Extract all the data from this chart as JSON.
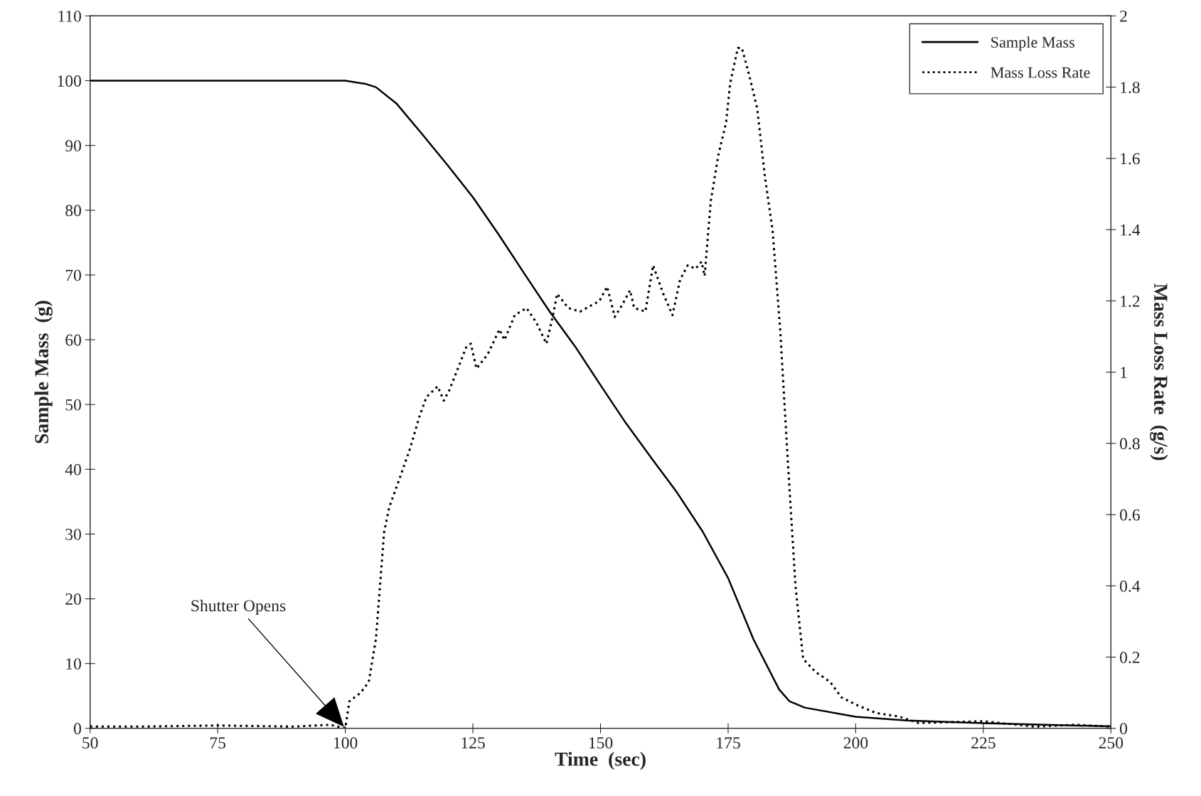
{
  "chart_data": {
    "type": "line",
    "xlabel": "Time  (sec)",
    "ylabel": "Sample Mass  (g)",
    "y2label": "Mass Loss Rate  (g/s)",
    "xlim": [
      50,
      250
    ],
    "xticks": [
      50,
      75,
      100,
      125,
      150,
      175,
      200,
      225,
      250
    ],
    "ylim": [
      0,
      110
    ],
    "yticks": [
      0,
      10,
      20,
      30,
      40,
      50,
      60,
      70,
      80,
      90,
      100,
      110
    ],
    "y2lim": [
      0,
      2
    ],
    "y2ticks": [
      0,
      0.2,
      0.4,
      0.6,
      0.8,
      1,
      1.2,
      1.4,
      1.6,
      1.8,
      2
    ],
    "grid": false,
    "legend": "top right",
    "annotations": [
      {
        "text": "Shutter Opens",
        "x": 100,
        "y": 0
      }
    ],
    "series": [
      {
        "name": "Sample Mass",
        "color": "#000000",
        "line_style": "solid",
        "x": [
          50,
          75,
          100,
          104,
          106,
          110,
          115,
          120,
          125,
          130,
          135,
          140,
          145,
          150,
          155,
          160,
          165,
          170,
          175,
          180,
          185,
          187,
          190,
          200,
          210,
          225,
          250
        ],
        "values": [
          100,
          100,
          100,
          99.5,
          99,
          96.5,
          91.8,
          87,
          82,
          76.3,
          70.3,
          64.4,
          59,
          53,
          47.1,
          41.7,
          36.4,
          30.4,
          23.2,
          13.7,
          6,
          4.2,
          3.2,
          1.8,
          1.2,
          0.8,
          0.3
        ]
      },
      {
        "name": "Mass Loss Rate",
        "color": "#000000",
        "line_style": "dotted",
        "axis": "y2",
        "x": [
          50,
          60,
          75,
          90,
          97,
          100,
          100.8,
          103,
          104.6,
          106,
          106.8,
          107.6,
          108.6,
          110.6,
          112.8,
          114.4,
          115.9,
          118.1,
          119.3,
          120.4,
          122.6,
          123.7,
          124.6,
          125.7,
          127.9,
          130.2,
          131.2,
          133.2,
          135.5,
          137.4,
          139.4,
          140.7,
          141.5,
          143.7,
          146,
          149.8,
          151.3,
          152.8,
          154.3,
          155.8,
          156.6,
          158.8,
          160.3,
          162.3,
          164.1,
          165.6,
          167.1,
          168.6,
          169.8,
          170.4,
          171.6,
          173.1,
          174.6,
          175.4,
          176.9,
          177.7,
          179.2,
          180.7,
          182.2,
          183.7,
          185.2,
          186.7,
          188.2,
          189.7,
          192,
          195,
          197.2,
          200.3,
          204,
          208.5,
          212.3,
          225,
          235,
          243,
          250
        ],
        "values": [
          0.005,
          0.005,
          0.008,
          0.005,
          0.01,
          0.0,
          0.076,
          0.1,
          0.13,
          0.25,
          0.4,
          0.55,
          0.62,
          0.7,
          0.79,
          0.87,
          0.93,
          0.96,
          0.92,
          0.95,
          1.03,
          1.07,
          1.08,
          1.01,
          1.05,
          1.12,
          1.09,
          1.16,
          1.18,
          1.14,
          1.08,
          1.16,
          1.22,
          1.18,
          1.17,
          1.2,
          1.24,
          1.155,
          1.19,
          1.23,
          1.18,
          1.17,
          1.3,
          1.22,
          1.16,
          1.26,
          1.3,
          1.29,
          1.31,
          1.27,
          1.48,
          1.61,
          1.7,
          1.81,
          1.91,
          1.91,
          1.83,
          1.74,
          1.55,
          1.4,
          1.12,
          0.75,
          0.4,
          0.195,
          0.16,
          0.13,
          0.087,
          0.065,
          0.043,
          0.033,
          0.015,
          0.02,
          0.005,
          0.01,
          0.005
        ]
      }
    ]
  }
}
